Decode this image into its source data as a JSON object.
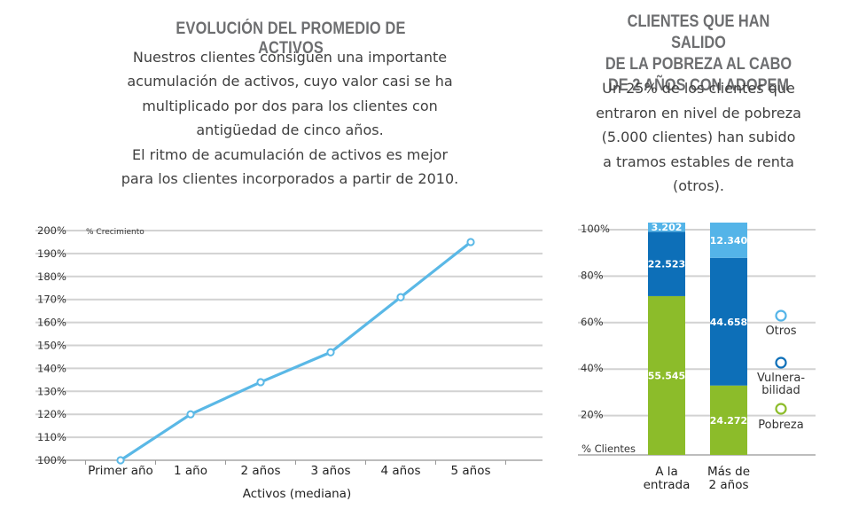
{
  "left_panel": {
    "title": "EVOLUCIÓN DEL PROMEDIO DE ACTIVOS",
    "description_lines": [
      "Nuestros clientes consiguen una importante",
      "acumulación de activos, cuyo valor casi se ha",
      "multiplicado por dos para los clientes con",
      "antigüedad de cinco años.",
      "El ritmo de acumulación de activos es mejor",
      "para los clientes incorporados a partir de 2010."
    ]
  },
  "right_panel": {
    "title_lines": [
      "CLIENTES QUE HAN SALIDO",
      "DE LA POBREZA AL CABO",
      "DE 2 AÑOS CON ADOPEM"
    ],
    "description_lines": [
      "Un 25% de los clientes que",
      "entraron en nivel de pobreza",
      "(5.000 clientes) han subido",
      "a tramos estables de renta",
      "(otros)."
    ]
  },
  "colors": {
    "line": "#5ab8e6",
    "otros": "#54b4e8",
    "vulnerabilidad": "#0d6fb8",
    "pobreza": "#8cbc2a",
    "grid": "#d2d2d2"
  },
  "chart_data": [
    {
      "type": "line",
      "title": "",
      "ylabel": "% Crecimiento",
      "xlabel": "Activos (mediana)",
      "ylim": [
        100,
        200
      ],
      "yticks": [
        "100%",
        "110%",
        "120%",
        "130%",
        "140%",
        "150%",
        "160%",
        "170%",
        "180%",
        "190%",
        "200%"
      ],
      "categories": [
        "Primer año",
        "1 año",
        "2 años",
        "3 años",
        "4 años",
        "5 años"
      ],
      "series": [
        {
          "values": [
            100,
            120,
            134,
            147,
            171,
            195
          ]
        }
      ]
    },
    {
      "type": "bar",
      "stacked": true,
      "ylabel": "% Clientes",
      "yticks": [
        "20%",
        "40%",
        "60%",
        "80%",
        "100%"
      ],
      "categories": [
        "A la entrada",
        "Más de 2 años"
      ],
      "category_lines": [
        [
          "A la",
          "entrada"
        ],
        [
          "Más de",
          "2 años"
        ]
      ],
      "series": [
        {
          "name": "Pobreza",
          "values": [
            55545,
            24272
          ],
          "labels": [
            "55.545",
            "24.272"
          ]
        },
        {
          "name": "Vulnera-bilidad",
          "legend_lines": [
            "Vulnera-",
            "bilidad"
          ],
          "values": [
            22523,
            44658
          ],
          "labels": [
            "22.523",
            "44.658"
          ]
        },
        {
          "name": "Otros",
          "values": [
            3202,
            12340
          ],
          "labels": [
            "3.202",
            "12.340"
          ]
        }
      ]
    }
  ]
}
